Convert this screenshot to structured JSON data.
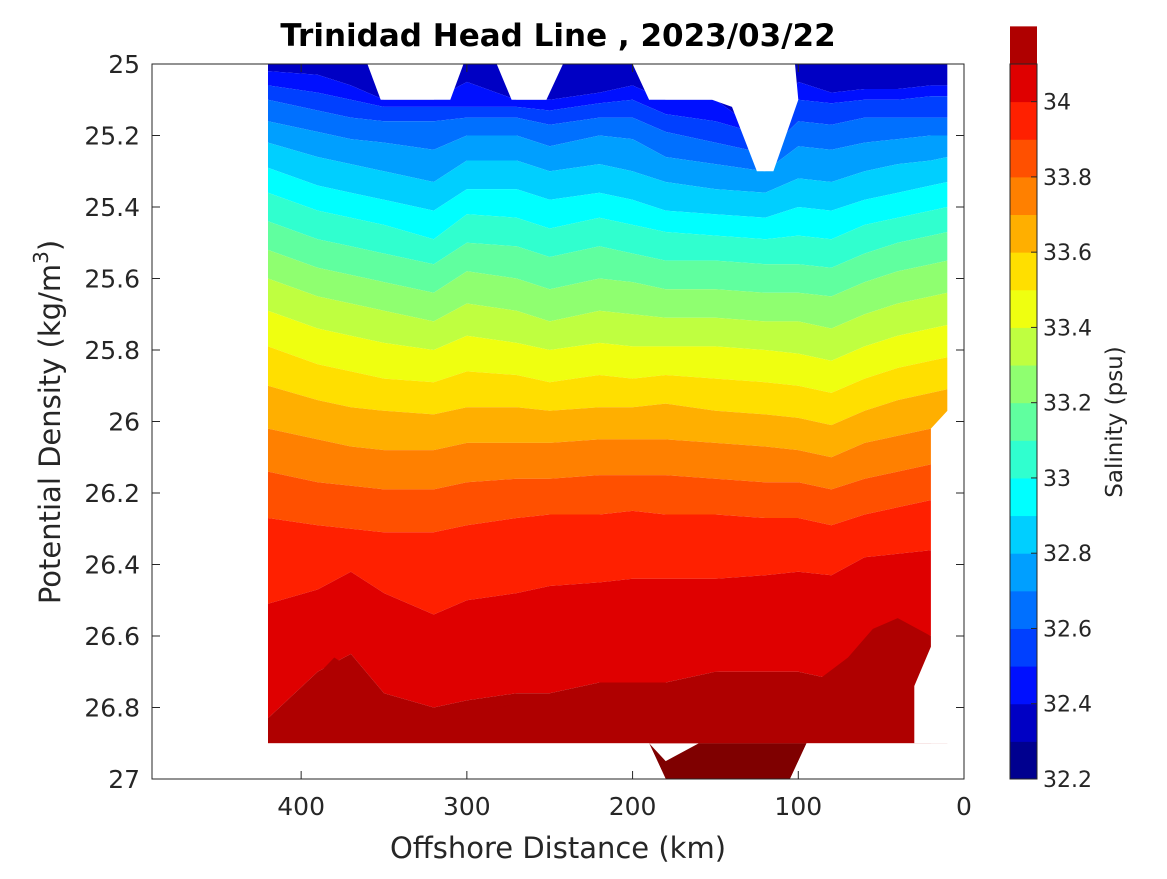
{
  "chart_data": {
    "type": "heatmap",
    "subtype": "filled-contour",
    "title": "Trinidad Head Line , 2023/03/22",
    "xlabel": "Offshore Distance (km)",
    "ylabel": "Potential Density (kg/m",
    "ylabel_sup": "3",
    "ylabel_end": ")",
    "xlim": [
      490,
      0
    ],
    "ylim": [
      25,
      27
    ],
    "x_reversed": true,
    "y_reversed": true,
    "x_ticks": [
      400,
      300,
      200,
      100,
      0
    ],
    "x_tick_labels": [
      "400",
      "300",
      "200",
      "100",
      "0"
    ],
    "y_ticks": [
      25,
      25.2,
      25.4,
      25.6,
      25.8,
      26,
      26.2,
      26.4,
      26.6,
      26.8,
      27
    ],
    "y_tick_labels": [
      "25",
      "25.2",
      "25.4",
      "25.6",
      "25.8",
      "26",
      "26.2",
      "26.4",
      "26.6",
      "26.8",
      "27"
    ],
    "grid": false,
    "data_extent": {
      "x_km": [
        10,
        420
      ],
      "density": [
        25,
        27
      ]
    },
    "colorbar": {
      "label": "Salinity (psu)",
      "range": [
        32.2,
        34.1
      ],
      "step": 0.1,
      "tick_values": [
        32.2,
        32.4,
        32.6,
        32.8,
        33,
        33.2,
        33.4,
        33.6,
        33.8,
        34
      ],
      "tick_labels": [
        "32.2",
        "32.4",
        "32.6",
        "32.8",
        "33",
        "33.2",
        "33.4",
        "33.6",
        "33.8",
        "34"
      ],
      "colors": [
        "#00008f",
        "#0000c4",
        "#0010ff",
        "#0040ff",
        "#0070ff",
        "#009fff",
        "#00cfff",
        "#00ffff",
        "#30ffcf",
        "#60ff9f",
        "#8fff70",
        "#bfff40",
        "#efff10",
        "#ffdf00",
        "#ffaf00",
        "#ff8000",
        "#ff5000",
        "#ff2000",
        "#df0000",
        "#af0000"
      ]
    },
    "contour_levels": [
      32.3,
      32.4,
      32.5,
      32.6,
      32.7,
      32.8,
      32.9,
      33.0,
      33.1,
      33.2,
      33.3,
      33.4,
      33.5,
      33.6,
      33.7,
      33.8,
      33.9,
      34.0
    ],
    "contour_density_at_stations": {
      "x_km": [
        420,
        390,
        370,
        350,
        320,
        300,
        270,
        250,
        220,
        200,
        180,
        150,
        120,
        100,
        80,
        60,
        40,
        20,
        10
      ],
      "levels": [
        [
          25.02,
          25.03,
          25.06,
          25.1,
          25.1,
          25.05,
          25.1,
          25.1,
          25.08,
          25.06,
          25.1,
          25.1,
          25.2,
          25.05,
          25.08,
          25.07,
          25.07,
          25.06,
          25.06
        ],
        [
          25.06,
          25.08,
          25.1,
          25.12,
          25.12,
          25.12,
          25.12,
          25.13,
          25.11,
          25.1,
          25.14,
          25.16,
          25.2,
          25.1,
          25.11,
          25.1,
          25.1,
          25.09,
          25.09
        ],
        [
          25.1,
          25.13,
          25.15,
          25.16,
          25.16,
          25.15,
          25.15,
          25.17,
          25.15,
          25.15,
          25.19,
          25.22,
          25.25,
          25.16,
          25.17,
          25.15,
          25.15,
          25.15,
          25.15
        ],
        [
          25.16,
          25.19,
          25.21,
          25.22,
          25.24,
          25.2,
          25.2,
          25.23,
          25.2,
          25.21,
          25.26,
          25.28,
          25.3,
          25.23,
          25.24,
          25.22,
          25.21,
          25.2,
          25.2
        ],
        [
          25.22,
          25.26,
          25.28,
          25.3,
          25.33,
          25.27,
          25.27,
          25.3,
          25.28,
          25.3,
          25.33,
          25.35,
          25.36,
          25.32,
          25.33,
          25.3,
          25.28,
          25.27,
          25.26
        ],
        [
          25.29,
          25.34,
          25.36,
          25.38,
          25.41,
          25.35,
          25.35,
          25.38,
          25.36,
          25.38,
          25.41,
          25.42,
          25.43,
          25.4,
          25.41,
          25.38,
          25.36,
          25.34,
          25.33
        ],
        [
          25.36,
          25.41,
          25.43,
          25.45,
          25.49,
          25.42,
          25.43,
          25.46,
          25.43,
          25.45,
          25.47,
          25.48,
          25.49,
          25.48,
          25.49,
          25.45,
          25.43,
          25.41,
          25.4
        ],
        [
          25.44,
          25.49,
          25.51,
          25.53,
          25.56,
          25.5,
          25.51,
          25.54,
          25.51,
          25.53,
          25.55,
          25.55,
          25.56,
          25.56,
          25.57,
          25.53,
          25.5,
          25.48,
          25.47
        ],
        [
          25.52,
          25.57,
          25.59,
          25.61,
          25.64,
          25.58,
          25.6,
          25.63,
          25.6,
          25.61,
          25.63,
          25.63,
          25.64,
          25.64,
          25.65,
          25.61,
          25.58,
          25.56,
          25.55
        ],
        [
          25.6,
          25.65,
          25.67,
          25.69,
          25.72,
          25.67,
          25.69,
          25.72,
          25.69,
          25.7,
          25.71,
          25.71,
          25.72,
          25.72,
          25.74,
          25.7,
          25.67,
          25.65,
          25.64
        ],
        [
          25.69,
          25.74,
          25.76,
          25.78,
          25.8,
          25.76,
          25.78,
          25.8,
          25.78,
          25.79,
          25.79,
          25.79,
          25.8,
          25.81,
          25.83,
          25.79,
          25.76,
          25.74,
          25.73
        ],
        [
          25.79,
          25.84,
          25.86,
          25.88,
          25.89,
          25.86,
          25.87,
          25.89,
          25.87,
          25.88,
          25.87,
          25.88,
          25.89,
          25.9,
          25.92,
          25.88,
          25.85,
          25.83,
          25.82
        ],
        [
          25.9,
          25.94,
          25.96,
          25.97,
          25.98,
          25.96,
          25.96,
          25.97,
          25.96,
          25.96,
          25.95,
          25.97,
          25.98,
          25.99,
          26.01,
          25.97,
          25.94,
          25.92,
          25.91
        ],
        [
          26.02,
          26.05,
          26.07,
          26.08,
          26.08,
          26.06,
          26.06,
          26.06,
          26.05,
          26.05,
          26.05,
          26.06,
          26.07,
          26.08,
          26.1,
          26.06,
          26.04,
          26.02,
          26.01
        ],
        [
          26.14,
          26.17,
          26.18,
          26.19,
          26.19,
          26.17,
          26.16,
          26.16,
          26.15,
          26.15,
          26.15,
          26.16,
          26.17,
          26.17,
          26.19,
          26.16,
          26.14,
          26.12,
          26.1
        ],
        [
          26.27,
          26.29,
          26.3,
          26.31,
          26.31,
          26.29,
          26.27,
          26.26,
          26.26,
          26.25,
          26.26,
          26.26,
          26.27,
          26.27,
          26.29,
          26.26,
          26.24,
          26.22,
          26.2
        ],
        [
          26.51,
          26.47,
          26.42,
          26.48,
          26.54,
          26.5,
          26.48,
          26.46,
          26.45,
          26.44,
          26.44,
          26.44,
          26.43,
          26.42,
          26.43,
          26.38,
          26.37,
          26.36,
          26.35
        ],
        [
          26.83,
          26.7,
          26.65,
          26.76,
          26.8,
          26.78,
          26.76,
          26.76,
          26.73,
          26.73,
          26.73,
          26.7,
          26.7,
          26.7,
          26.72,
          26.64,
          26.56,
          26.6,
          26.65
        ]
      ]
    },
    "white_gaps": {
      "top_notches": [
        {
          "x_km": [
            360,
            352,
            310,
            302
          ],
          "density": [
            25,
            25.1,
            25.1,
            25
          ]
        },
        {
          "x_km": [
            282,
            273,
            252,
            242
          ],
          "density": [
            25,
            25.1,
            25.1,
            25
          ]
        },
        {
          "x_km": [
            200,
            190,
            152,
            140,
            125,
            115,
            100,
            102
          ],
          "density": [
            25,
            25.1,
            25.1,
            25.12,
            25.3,
            25.3,
            25.1,
            25
          ]
        }
      ],
      "right_edge": {
        "x_km": [
          10,
          10,
          20,
          20,
          30,
          30
        ],
        "density": [
          25.9,
          25.97,
          26.02,
          26.63,
          26.74,
          26.9
        ]
      }
    },
    "bottom_extension": {
      "x_km": [
        190,
        180,
        160,
        130,
        110,
        95,
        105,
        180
      ],
      "density": [
        26.9,
        26.95,
        26.9,
        26.9,
        26.9,
        26.9,
        27,
        27
      ]
    }
  }
}
